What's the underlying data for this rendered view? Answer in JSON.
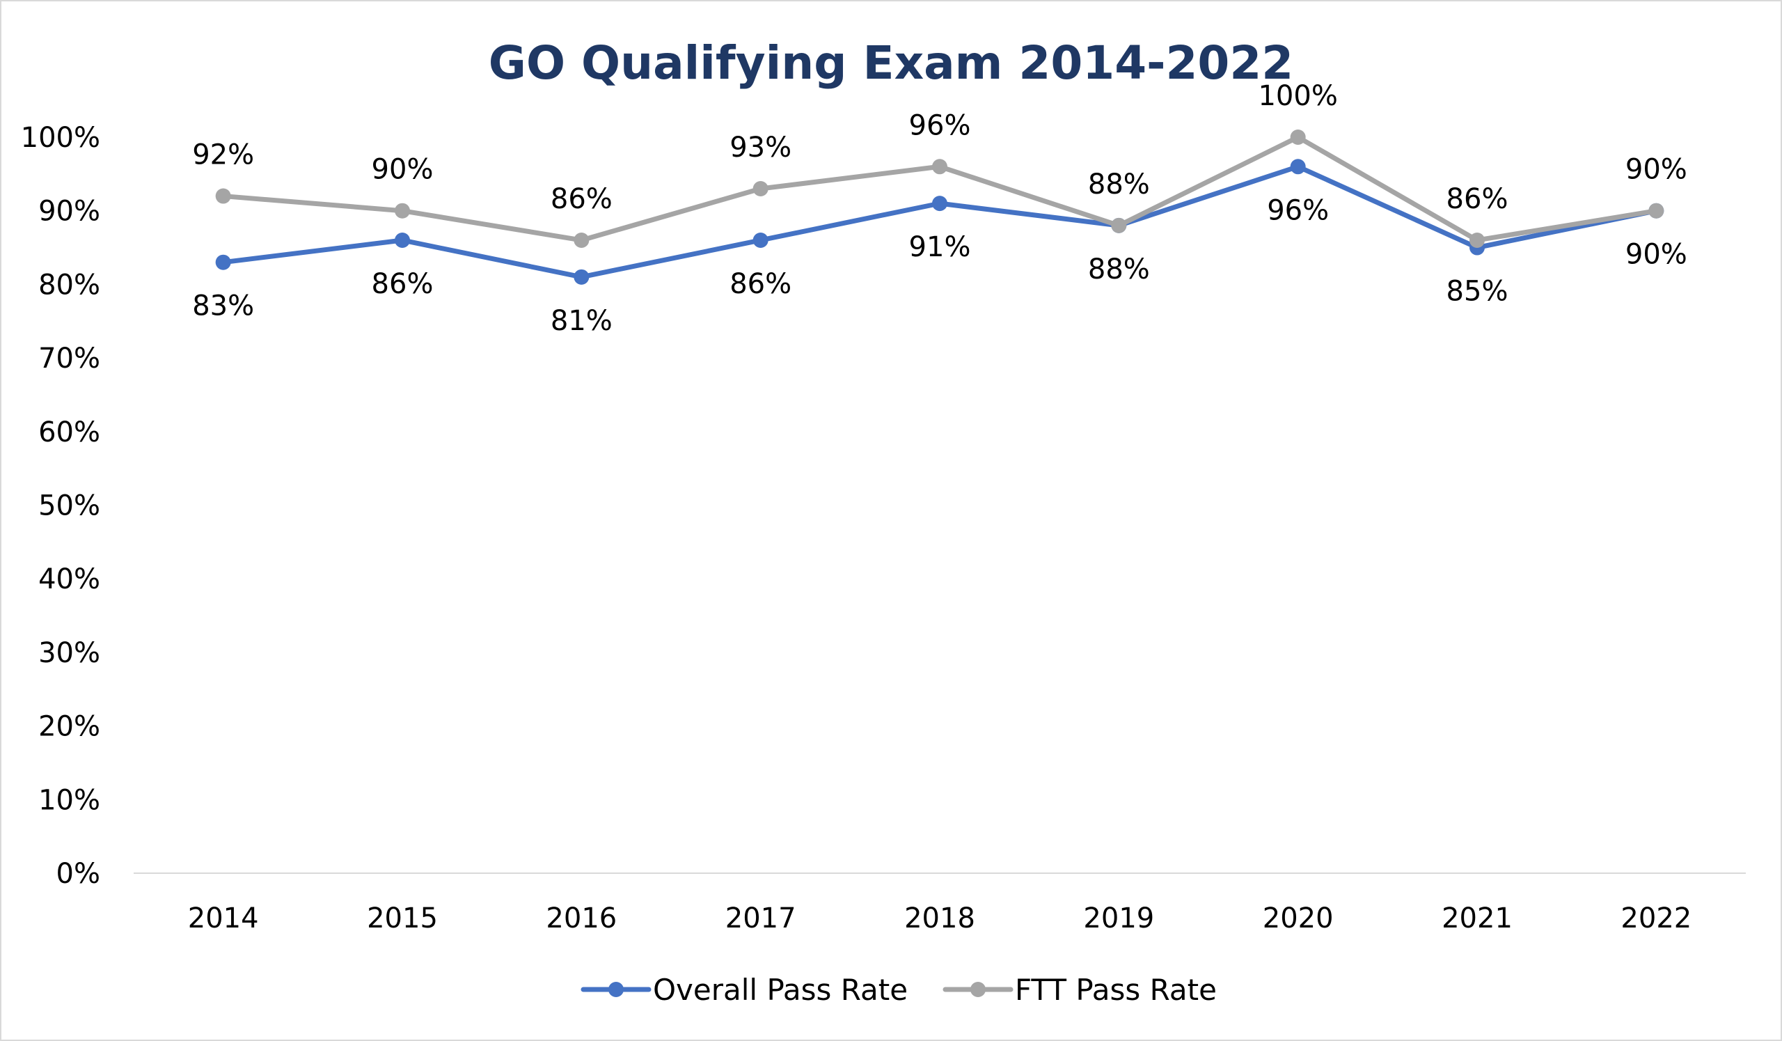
{
  "chart_data": {
    "type": "line",
    "title": "GO Qualifying Exam 2014-2022",
    "xlabel": "",
    "ylabel": "",
    "categories": [
      "2014",
      "2015",
      "2016",
      "2017",
      "2018",
      "2019",
      "2020",
      "2021",
      "2022"
    ],
    "ylim": [
      0,
      100
    ],
    "yticks": [
      "0%",
      "10%",
      "20%",
      "30%",
      "40%",
      "50%",
      "60%",
      "70%",
      "80%",
      "90%",
      "100%"
    ],
    "grid": false,
    "legend_position": "bottom",
    "series": [
      {
        "name": "Overall Pass Rate",
        "color": "#4472c4",
        "values": [
          83,
          86,
          81,
          86,
          91,
          88,
          96,
          85,
          90
        ],
        "labels": [
          "83%",
          "86%",
          "81%",
          "86%",
          "91%",
          "88%",
          "96%",
          "85%",
          "90%"
        ],
        "label_position": "below"
      },
      {
        "name": "FTT Pass Rate",
        "color": "#a5a5a5",
        "values": [
          92,
          90,
          86,
          93,
          96,
          88,
          100,
          86,
          90
        ],
        "labels": [
          "92%",
          "90%",
          "86%",
          "93%",
          "96%",
          "88%",
          "100%",
          "86%",
          "90%"
        ],
        "label_position": "above"
      }
    ]
  }
}
